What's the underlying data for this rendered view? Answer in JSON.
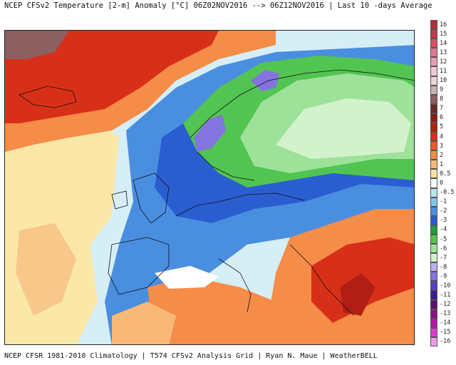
{
  "title": "NCEP CFSv2 Temperature [2-m] Anomaly [°C] 06Z02NOV2016 --> 06Z12NOV2016 | Last 10 -days Average",
  "footer": "NCEP CFSR 1981-2010 Climatology | T574 CFSv2 Analysis Grid | Ryan N. Maue | WeatherBELL",
  "legend": [
    {
      "label": "16",
      "color": "#b0303a"
    },
    {
      "label": "15",
      "color": "#c4384a"
    },
    {
      "label": "14",
      "color": "#d65065"
    },
    {
      "label": "13",
      "color": "#e07890"
    },
    {
      "label": "12",
      "color": "#e8a0b4"
    },
    {
      "label": "11",
      "color": "#f0c8d2"
    },
    {
      "label": "10",
      "color": "#ead8d8"
    },
    {
      "label": "9",
      "color": "#c8b0b0"
    },
    {
      "label": "8",
      "color": "#8a6060"
    },
    {
      "label": "7",
      "color": "#6a2a20"
    },
    {
      "label": "6",
      "color": "#8a1e14"
    },
    {
      "label": "5",
      "color": "#b01e14"
    },
    {
      "label": "4",
      "color": "#d83018"
    },
    {
      "label": "3",
      "color": "#ee5a28"
    },
    {
      "label": "2",
      "color": "#f58c48"
    },
    {
      "label": "1",
      "color": "#f8b876"
    },
    {
      "label": "0.5",
      "color": "#fbe4a0"
    },
    {
      "label": "0",
      "color": "#ffffff"
    },
    {
      "label": "-0.5",
      "color": "#b6e6f2"
    },
    {
      "label": "-1",
      "color": "#80c8ee"
    },
    {
      "label": "-2",
      "color": "#4a8ee0"
    },
    {
      "label": "-3",
      "color": "#2a5ed0"
    },
    {
      "label": "-4",
      "color": "#1e9e3a"
    },
    {
      "label": "-5",
      "color": "#52c452"
    },
    {
      "label": "-6",
      "color": "#9ee29a"
    },
    {
      "label": "-7",
      "color": "#d2f2cc"
    },
    {
      "label": "-8",
      "color": "#b8b0f0"
    },
    {
      "label": "-9",
      "color": "#8474e0"
    },
    {
      "label": "-10",
      "color": "#5440c0"
    },
    {
      "label": "-11",
      "color": "#3c1e8e"
    },
    {
      "label": "-12",
      "color": "#5e1070"
    },
    {
      "label": "-13",
      "color": "#8a1484"
    },
    {
      "label": "-14",
      "color": "#b41aa8"
    },
    {
      "label": "-15",
      "color": "#dc3ccc"
    },
    {
      "label": "-16",
      "color": "#f29ae8"
    }
  ]
}
